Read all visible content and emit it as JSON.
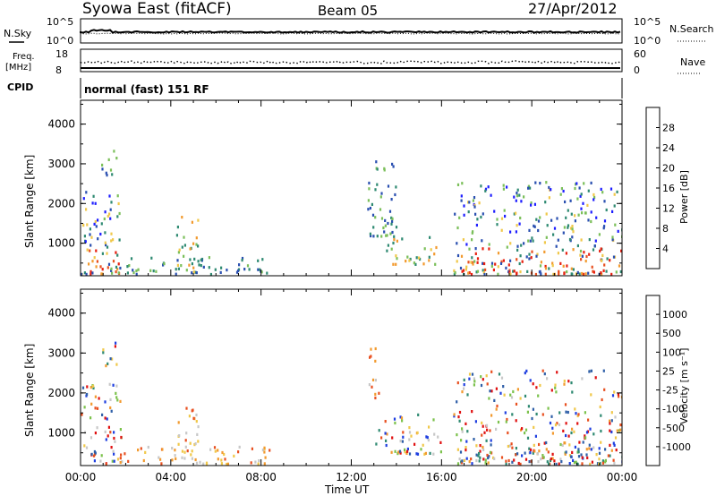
{
  "header": {
    "title": "Syowa East (fitACF)",
    "beam": "Beam 05",
    "date": "27/Apr/2012"
  },
  "top_panels": {
    "nsky_label": "N.Sky",
    "nsky_ticks": [
      "10^5",
      "10^0"
    ],
    "nsearch_label": "N.Search",
    "nsearch_ticks": [
      "10^5",
      "10^0"
    ],
    "freq_label": "Freq.",
    "freq_unit": "[MHz]",
    "freq_ticks": [
      "18",
      "8"
    ],
    "nave_label": "Nave",
    "nave_ticks": [
      "60",
      "0"
    ],
    "cpid_label": "CPID",
    "cpid_value": "normal (fast) 151 RF"
  },
  "chart_data": [
    {
      "type": "heatmap",
      "name": "power-panel",
      "xlabel": "",
      "ylabel": "Slant Range [km]",
      "x_range_hours": [
        0,
        24
      ],
      "ylim": [
        180,
        4600
      ],
      "yticks": [
        "1000",
        "2000",
        "3000",
        "4000"
      ],
      "colorbar_label": "Power [dB]",
      "colorbar_ticks": [
        "4",
        "8",
        "12",
        "16",
        "20",
        "24",
        "28"
      ],
      "colorbar_colors": [
        "#1f1fff",
        "#2a4fb0",
        "#2f8a72",
        "#7bbf5a",
        "#f0c84a",
        "#f29a2e",
        "#e85020",
        "#e82010"
      ],
      "scatter_regions": [
        {
          "t": [
            0.0,
            1.8
          ],
          "r": [
            250,
            2600
          ],
          "level": "high"
        },
        {
          "t": [
            0.9,
            1.6
          ],
          "r": [
            2700,
            3400
          ],
          "level": "low"
        },
        {
          "t": [
            4.2,
            5.2
          ],
          "r": [
            300,
            1700
          ],
          "level": "mid"
        },
        {
          "t": [
            1.7,
            8.4
          ],
          "r": [
            250,
            700
          ],
          "level": "low"
        },
        {
          "t": [
            12.7,
            14.0
          ],
          "r": [
            1200,
            3200
          ],
          "level": "low"
        },
        {
          "t": [
            13.5,
            15.8
          ],
          "r": [
            500,
            1200
          ],
          "level": "mid"
        },
        {
          "t": [
            16.5,
            24.0
          ],
          "r": [
            250,
            2600
          ],
          "level": "high"
        }
      ]
    },
    {
      "type": "heatmap",
      "name": "velocity-panel",
      "xlabel": "Time UT",
      "ylabel": "Slant Range [km]",
      "x_range_hours": [
        0,
        24
      ],
      "xticks": [
        "00:00",
        "04:00",
        "08:00",
        "12:00",
        "16:00",
        "20:00",
        "00:00"
      ],
      "ylim": [
        180,
        4600
      ],
      "yticks": [
        "1000",
        "2000",
        "3000",
        "4000"
      ],
      "colorbar_label": "Velocity [m s⁻¹]",
      "colorbar_ticks": [
        "1000",
        "500",
        "100",
        "25",
        "-25",
        "-100",
        "-500",
        "-1000"
      ],
      "colorbar_colors": [
        "#1f3fe0",
        "#2f5fa8",
        "#2f8a72",
        "#7cc24c",
        "#c8c8c8",
        "#f0c84a",
        "#f29a2e",
        "#e85020",
        "#e01010"
      ],
      "scatter_regions": [
        {
          "t": [
            0.0,
            1.8
          ],
          "r": [
            250,
            2300
          ],
          "level": "mixed"
        },
        {
          "t": [
            0.9,
            1.6
          ],
          "r": [
            2700,
            3400
          ],
          "level": "mixed"
        },
        {
          "t": [
            4.2,
            5.2
          ],
          "r": [
            300,
            1700
          ],
          "level": "neg"
        },
        {
          "t": [
            1.7,
            8.4
          ],
          "r": [
            250,
            700
          ],
          "level": "neg"
        },
        {
          "t": [
            12.7,
            13.2
          ],
          "r": [
            1900,
            3200
          ],
          "level": "neg"
        },
        {
          "t": [
            13.0,
            16.0
          ],
          "r": [
            500,
            1500
          ],
          "level": "mixed"
        },
        {
          "t": [
            16.5,
            24.0
          ],
          "r": [
            250,
            2600
          ],
          "level": "mixed"
        }
      ]
    }
  ]
}
